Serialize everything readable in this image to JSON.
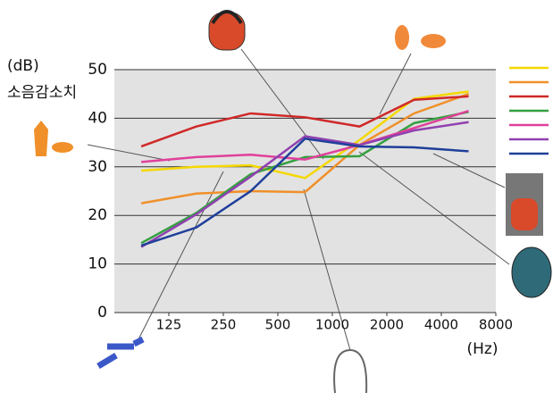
{
  "chart_data": {
    "type": "line",
    "y_label": [
      "(dB)",
      "소음감소치"
    ],
    "x_label": "(Hz)",
    "x": [
      88,
      177,
      354,
      707,
      1414,
      2828,
      5657
    ],
    "xlim": [
      62.5,
      8000
    ],
    "xticks": [
      125,
      250,
      500,
      1000,
      2000,
      4000,
      8000
    ],
    "xscale": "log",
    "ylim": [
      0,
      50
    ],
    "yticks": [
      0,
      10,
      20,
      30,
      40,
      50
    ],
    "grid": true,
    "series": [
      {
        "color": "#f5d800",
        "values": [
          29.2,
          30,
          30.3,
          27.7,
          35.5,
          44,
          45.5
        ]
      },
      {
        "color": "#f0902a",
        "values": [
          22.5,
          24.5,
          25,
          24.8,
          34.5,
          41,
          45
        ]
      },
      {
        "color": "#d02828",
        "values": [
          34.2,
          38.3,
          41,
          40.2,
          38.3,
          43.8,
          44.5
        ]
      },
      {
        "color": "#34a040",
        "values": [
          14.3,
          20.5,
          28.5,
          32,
          32.2,
          39,
          41.3
        ]
      },
      {
        "color": "#e0409a",
        "values": [
          31,
          32,
          32.5,
          31.5,
          34.5,
          38,
          41.5
        ]
      },
      {
        "color": "#9040b0",
        "values": [
          13.5,
          20.2,
          28,
          36.3,
          34.5,
          37.5,
          39.2
        ]
      },
      {
        "color": "#1f3f9a",
        "values": [
          13.8,
          17.5,
          25,
          35.8,
          34.2,
          34,
          33.2
        ]
      }
    ]
  }
}
